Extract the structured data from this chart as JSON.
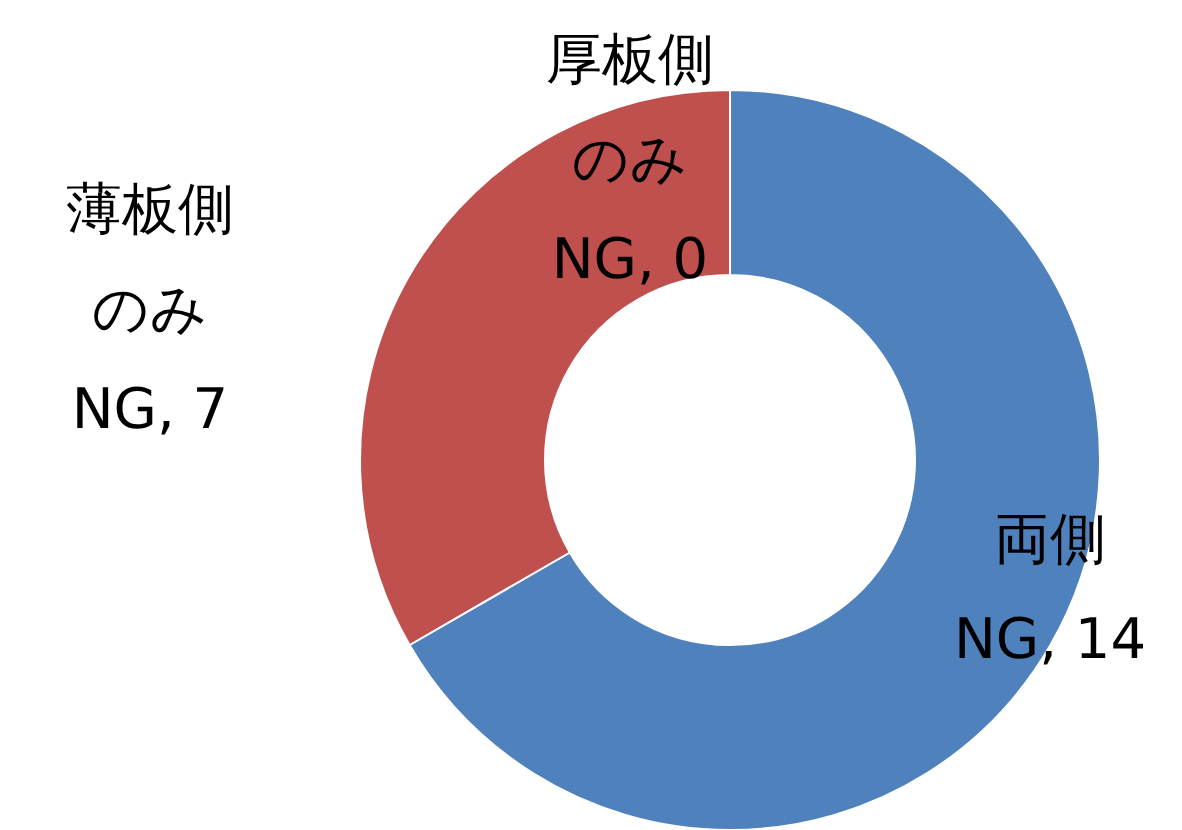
{
  "chart_data": {
    "type": "donut",
    "categories": [
      "両側",
      "薄板側のみ",
      "厚板側のみ"
    ],
    "values": [
      14,
      7,
      0
    ],
    "colors": [
      "#4f81bd",
      "#c0504d",
      null
    ],
    "value_labels": [
      "NG, 14",
      "NG, 7",
      "NG, 0"
    ]
  }
}
